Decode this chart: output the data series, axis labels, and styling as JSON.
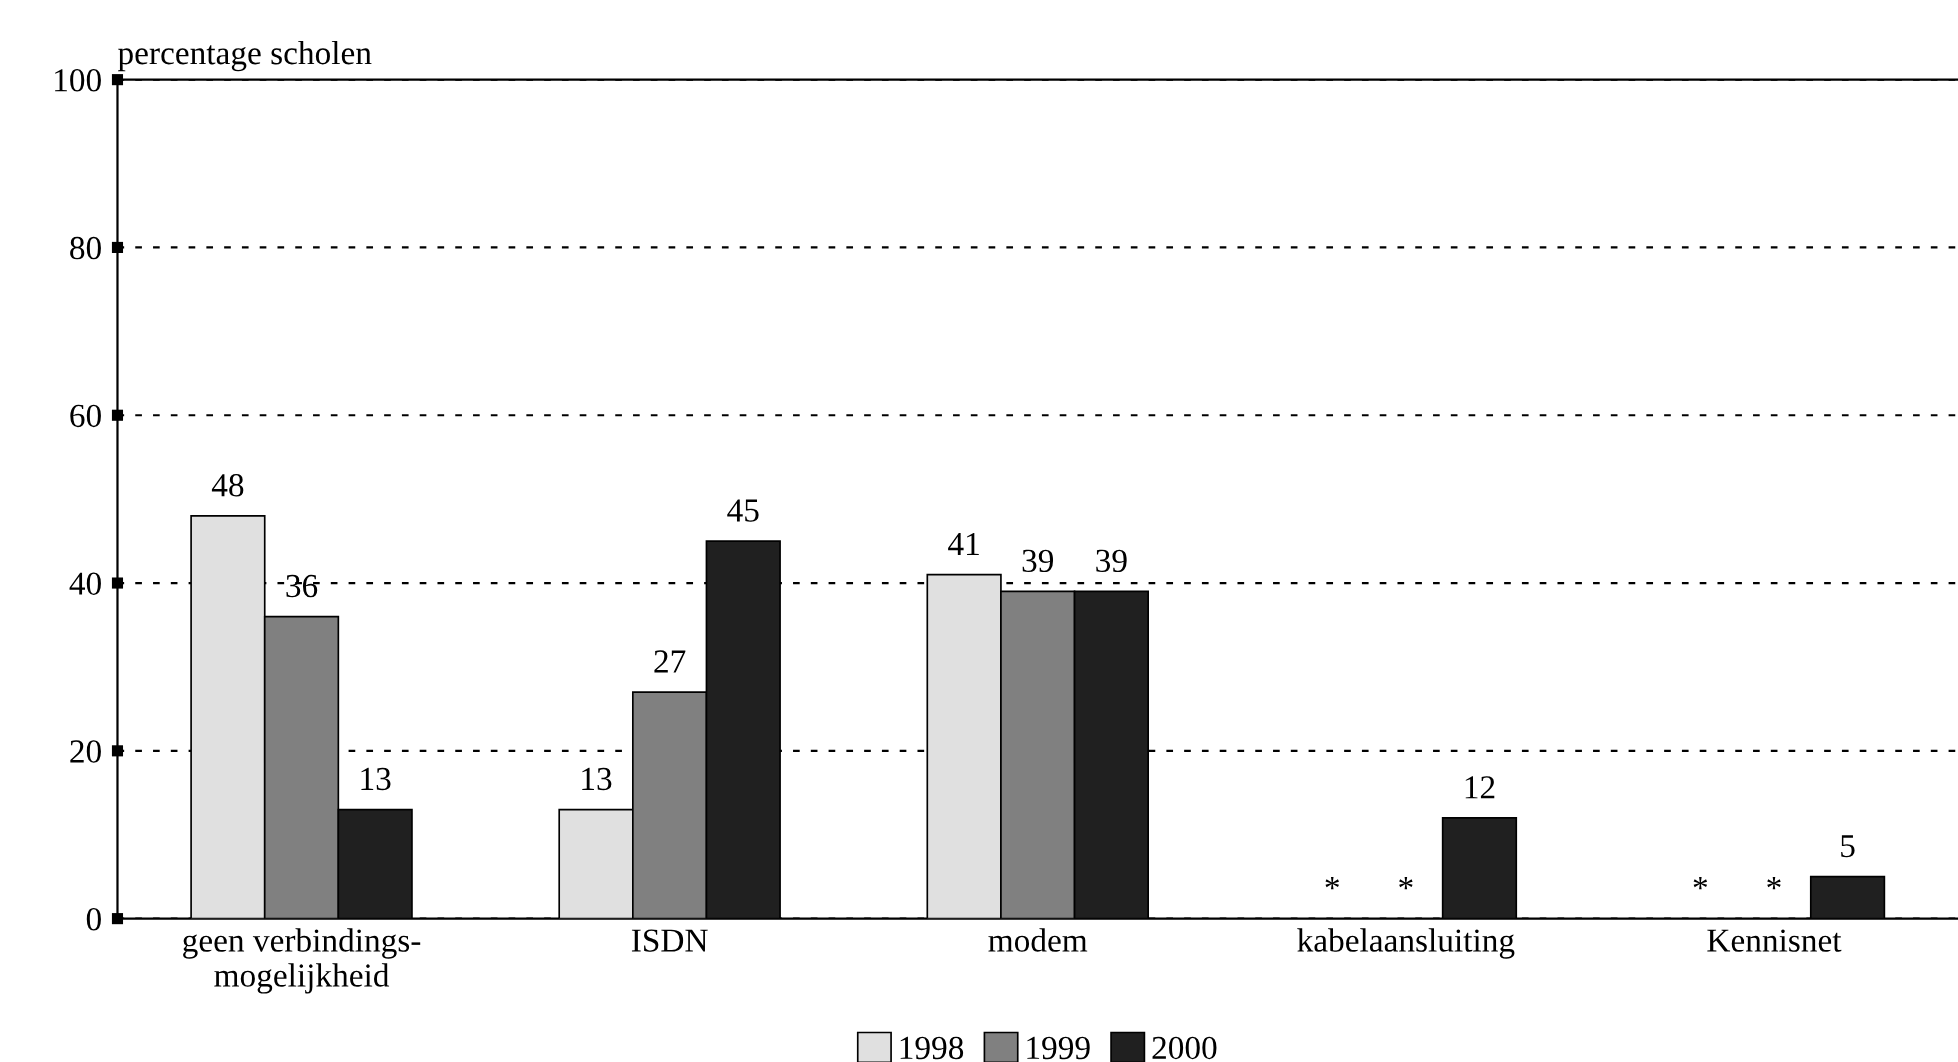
{
  "chart_data": {
    "type": "bar",
    "ylabel": "percentage scholen",
    "categories": [
      "geen verbindings-\nmogelijkheid",
      "ISDN",
      "modem",
      "kabelaansluiting",
      "Kennisnet"
    ],
    "series": [
      {
        "name": "1998",
        "color": "#e0e0e0",
        "values": [
          48,
          13,
          41,
          null,
          null
        ],
        "value_labels": [
          "48",
          "13",
          "41",
          "*",
          "*"
        ]
      },
      {
        "name": "1999",
        "color": "#808080",
        "values": [
          36,
          27,
          39,
          null,
          null
        ],
        "value_labels": [
          "36",
          "27",
          "39",
          "*",
          "*"
        ]
      },
      {
        "name": "2000",
        "color": "#202020",
        "values": [
          13,
          45,
          39,
          12,
          5
        ],
        "value_labels": [
          "13",
          "45",
          "39",
          "12",
          "5"
        ]
      }
    ],
    "ylim": [
      0,
      100
    ],
    "yticks": [
      0,
      20,
      40,
      60,
      80,
      100
    ],
    "grid": "y",
    "legend": "bottom"
  }
}
